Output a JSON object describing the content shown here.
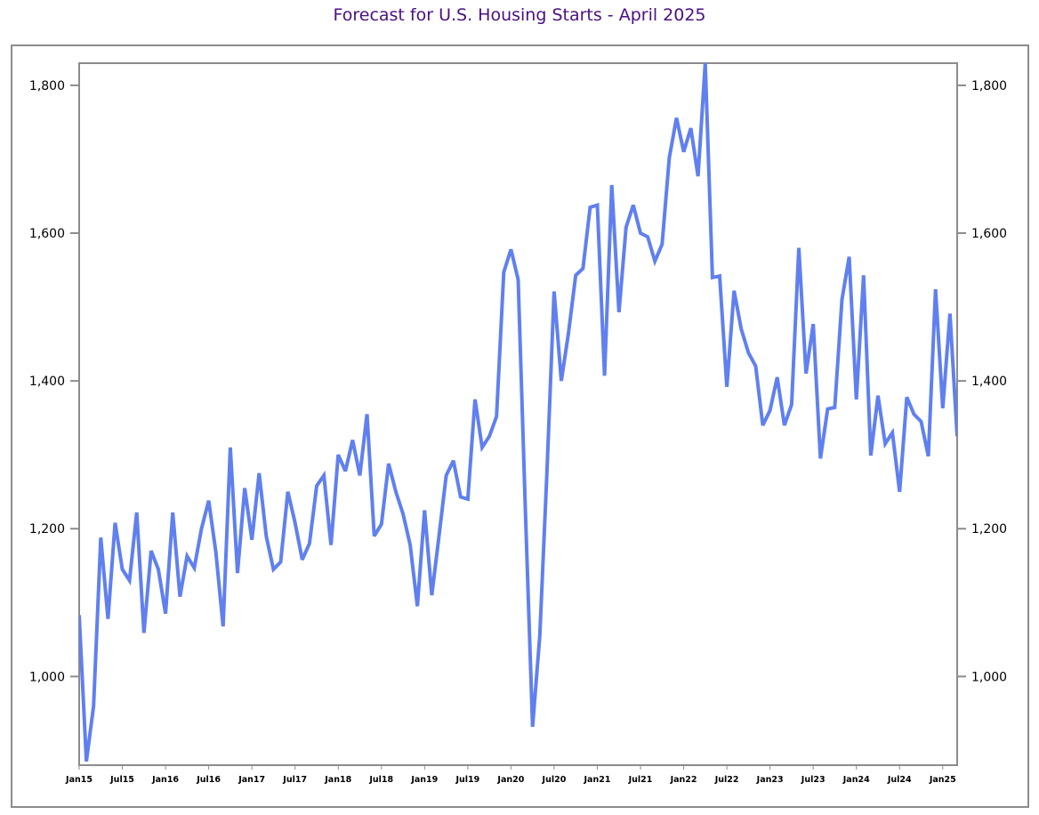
{
  "chart_data": {
    "type": "line",
    "title": "Forecast for U.S. Housing Starts - April 2025",
    "xlabel": "",
    "ylabel": "",
    "ylim": [
      880,
      1830
    ],
    "y_ticks": [
      1000,
      1200,
      1400,
      1600,
      1800
    ],
    "y_tick_labels": [
      "1,000",
      "1,200",
      "1,400",
      "1,600",
      "1,800"
    ],
    "x_ticks": [
      {
        "index": 0,
        "label": "Jan15"
      },
      {
        "index": 6,
        "label": "Jul15"
      },
      {
        "index": 12,
        "label": "Jan16"
      },
      {
        "index": 18,
        "label": "Jul16"
      },
      {
        "index": 24,
        "label": "Jan17"
      },
      {
        "index": 30,
        "label": "Jul17"
      },
      {
        "index": 36,
        "label": "Jan18"
      },
      {
        "index": 42,
        "label": "Jul18"
      },
      {
        "index": 48,
        "label": "Jan19"
      },
      {
        "index": 54,
        "label": "Jul19"
      },
      {
        "index": 60,
        "label": "Jan20"
      },
      {
        "index": 66,
        "label": "Jul20"
      },
      {
        "index": 72,
        "label": "Jan21"
      },
      {
        "index": 78,
        "label": "Jul21"
      },
      {
        "index": 84,
        "label": "Jan22"
      },
      {
        "index": 90,
        "label": "Jul22"
      },
      {
        "index": 96,
        "label": "Jan23"
      },
      {
        "index": 102,
        "label": "Jul23"
      },
      {
        "index": 108,
        "label": "Jan24"
      },
      {
        "index": 114,
        "label": "Jul24"
      },
      {
        "index": 120,
        "label": "Jan25"
      }
    ],
    "grid": false,
    "series": [
      {
        "color": "#6080f0",
        "values": [
          1083,
          885,
          960,
          1188,
          1078,
          1208,
          1145,
          1130,
          1222,
          1059,
          1170,
          1145,
          1085,
          1222,
          1108,
          1163,
          1147,
          1200,
          1238,
          1168,
          1068,
          1310,
          1140,
          1255,
          1185,
          1275,
          1190,
          1145,
          1155,
          1250,
          1208,
          1158,
          1180,
          1258,
          1272,
          1178,
          1300,
          1278,
          1320,
          1272,
          1355,
          1190,
          1206,
          1288,
          1250,
          1220,
          1178,
          1095,
          1225,
          1110,
          1190,
          1272,
          1292,
          1243,
          1240,
          1375,
          1310,
          1325,
          1352,
          1547,
          1578,
          1537,
          1225,
          932,
          1055,
          1278,
          1521,
          1400,
          1465,
          1543,
          1552,
          1635,
          1638,
          1407,
          1665,
          1493,
          1608,
          1638,
          1600,
          1595,
          1562,
          1585,
          1702,
          1756,
          1710,
          1742,
          1677,
          1830,
          1540,
          1542,
          1392,
          1522,
          1470,
          1438,
          1420,
          1340,
          1360,
          1405,
          1340,
          1368,
          1580,
          1410,
          1477,
          1295,
          1362,
          1364,
          1510,
          1568,
          1375,
          1543,
          1299,
          1380,
          1315,
          1330,
          1250,
          1378,
          1355,
          1345,
          1298,
          1524,
          1363,
          1491,
          1325
        ]
      }
    ]
  }
}
